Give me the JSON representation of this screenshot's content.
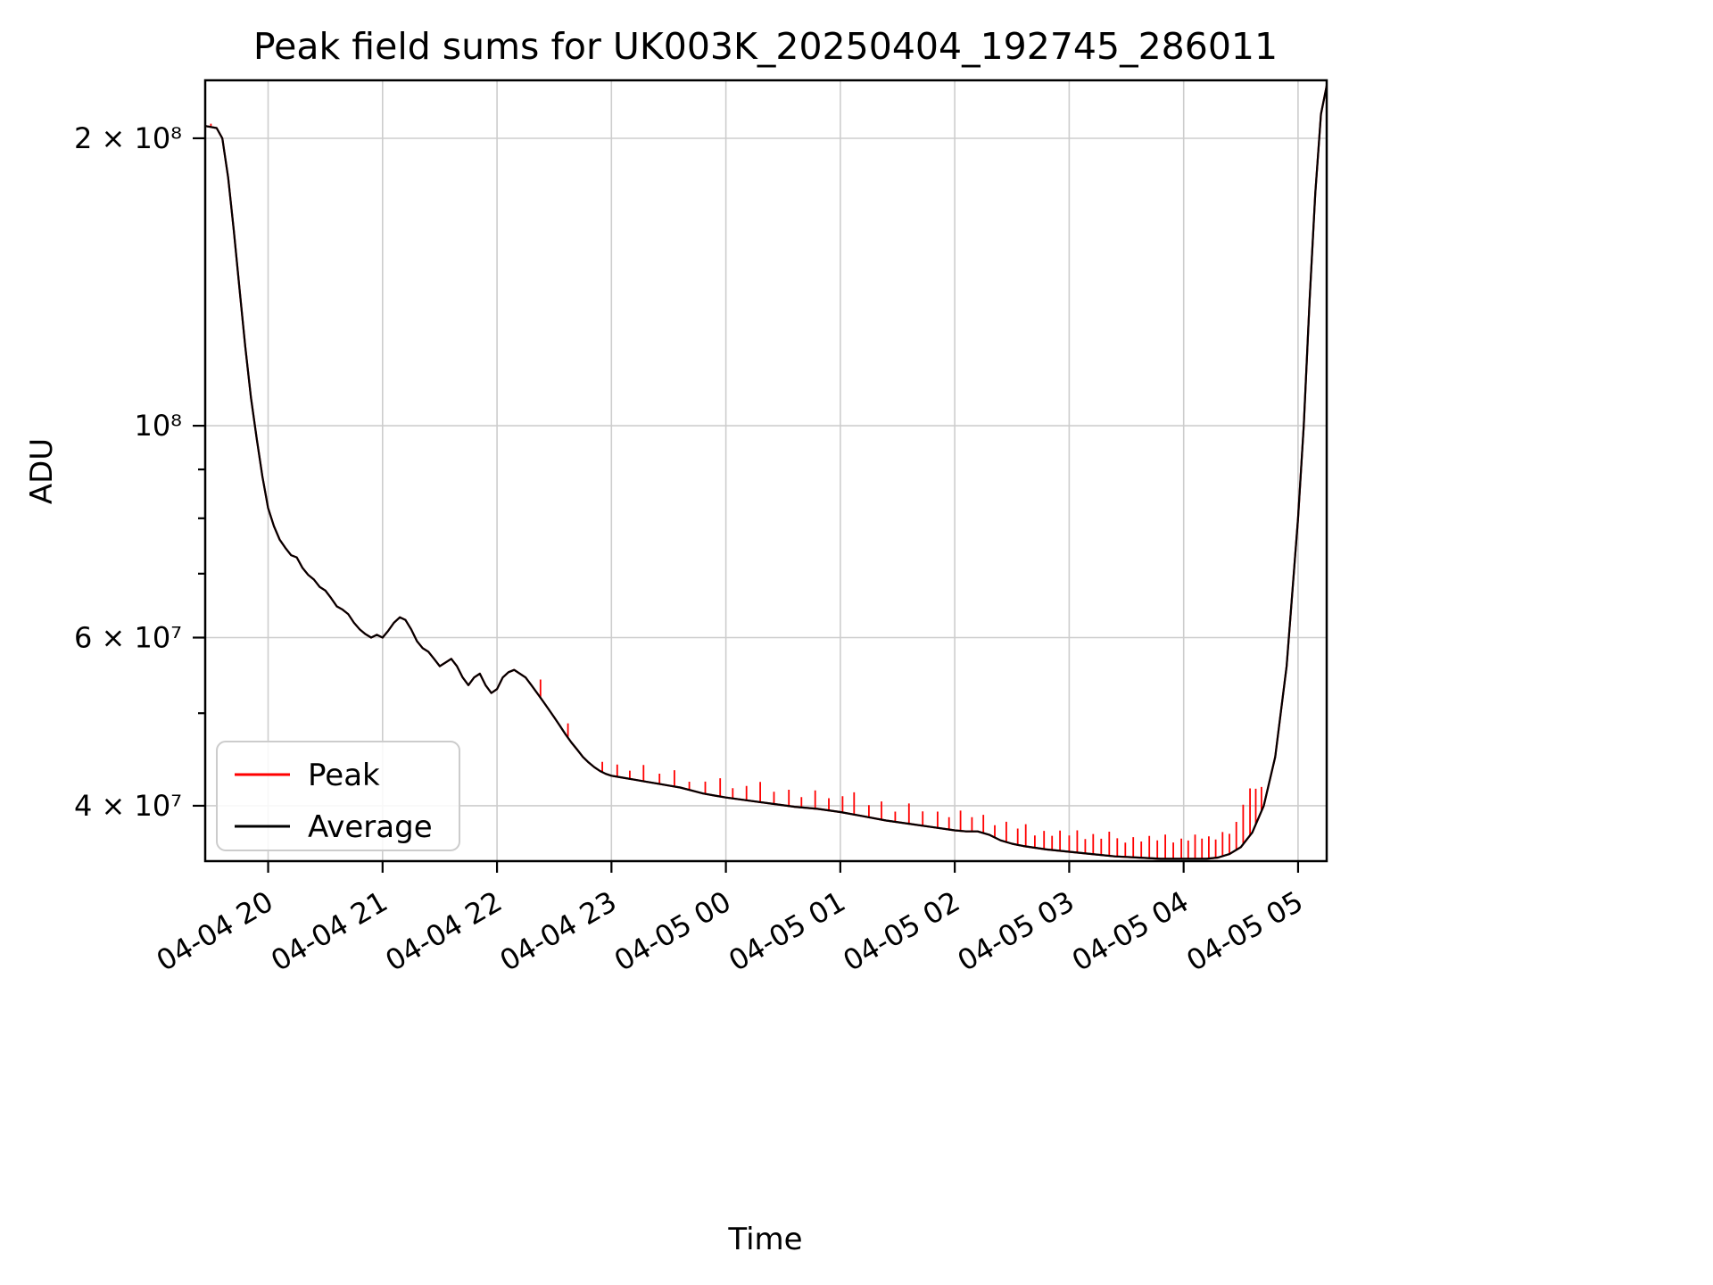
{
  "figure": {
    "background": "#ffffff"
  },
  "chart_data": {
    "type": "line",
    "title": "Peak field sums for UK003K_20250404_192745_286011",
    "xlabel": "Time",
    "ylabel": "ADU",
    "yscale": "log",
    "grid": true,
    "legend_position": "lower left",
    "x_unit": "hours since 2025-04-04 00:00",
    "xlim": [
      19.45,
      29.25
    ],
    "ylim": [
      35000000.0,
      230000000.0
    ],
    "xticks": [
      {
        "value": 20,
        "label": "04-04 20"
      },
      {
        "value": 21,
        "label": "04-04 21"
      },
      {
        "value": 22,
        "label": "04-04 22"
      },
      {
        "value": 23,
        "label": "04-04 23"
      },
      {
        "value": 24,
        "label": "04-05 00"
      },
      {
        "value": 25,
        "label": "04-05 01"
      },
      {
        "value": 26,
        "label": "04-05 02"
      },
      {
        "value": 27,
        "label": "04-05 03"
      },
      {
        "value": 28,
        "label": "04-05 04"
      },
      {
        "value": 29,
        "label": "04-05 05"
      }
    ],
    "yticks": [
      {
        "value": 200000000.0,
        "label": "2 × 10⁸"
      },
      {
        "value": 100000000.0,
        "label": "10⁸"
      },
      {
        "value": 60000000.0,
        "label": "6 × 10⁷"
      },
      {
        "value": 40000000.0,
        "label": "4 × 10⁷"
      }
    ],
    "yticks_minor": [
      50000000.0,
      70000000.0,
      80000000.0,
      90000000.0
    ],
    "x": [
      19.45,
      19.5,
      19.55,
      19.6,
      19.65,
      19.7,
      19.75,
      19.8,
      19.85,
      19.9,
      19.95,
      20.0,
      20.05,
      20.1,
      20.15,
      20.2,
      20.25,
      20.3,
      20.35,
      20.4,
      20.45,
      20.5,
      20.55,
      20.6,
      20.65,
      20.7,
      20.75,
      20.8,
      20.85,
      20.9,
      20.95,
      21.0,
      21.05,
      21.1,
      21.15,
      21.2,
      21.25,
      21.3,
      21.35,
      21.4,
      21.45,
      21.5,
      21.55,
      21.6,
      21.65,
      21.7,
      21.75,
      21.8,
      21.85,
      21.9,
      21.95,
      22.0,
      22.05,
      22.1,
      22.15,
      22.2,
      22.25,
      22.3,
      22.35,
      22.4,
      22.45,
      22.5,
      22.55,
      22.6,
      22.65,
      22.7,
      22.75,
      22.8,
      22.85,
      22.9,
      22.95,
      23.0,
      23.1,
      23.2,
      23.3,
      23.4,
      23.5,
      23.6,
      23.7,
      23.8,
      23.9,
      24.0,
      24.2,
      24.4,
      24.6,
      24.8,
      25.0,
      25.2,
      25.4,
      25.6,
      25.8,
      26.0,
      26.1,
      26.2,
      26.3,
      26.4,
      26.5,
      26.6,
      26.8,
      27.0,
      27.2,
      27.4,
      27.6,
      27.8,
      28.0,
      28.1,
      28.2,
      28.3,
      28.4,
      28.5,
      28.6,
      28.7,
      28.8,
      28.9,
      29.0,
      29.05,
      29.1,
      29.15,
      29.2,
      29.25
    ],
    "series": [
      {
        "name": "Peak",
        "color": "#ff0000",
        "baseline": "Average",
        "spikes": [
          [
            19.5,
            1.008
          ],
          [
            22.38,
            1.045
          ],
          [
            22.62,
            1.035
          ],
          [
            22.92,
            1.025
          ],
          [
            23.05,
            1.03
          ],
          [
            23.16,
            1.02
          ],
          [
            23.28,
            1.04
          ],
          [
            23.42,
            1.025
          ],
          [
            23.55,
            1.04
          ],
          [
            23.68,
            1.02
          ],
          [
            23.82,
            1.03
          ],
          [
            23.95,
            1.045
          ],
          [
            24.06,
            1.025
          ],
          [
            24.18,
            1.035
          ],
          [
            24.3,
            1.05
          ],
          [
            24.42,
            1.03
          ],
          [
            24.55,
            1.04
          ],
          [
            24.66,
            1.025
          ],
          [
            24.78,
            1.045
          ],
          [
            24.9,
            1.03
          ],
          [
            25.02,
            1.04
          ],
          [
            25.12,
            1.055
          ],
          [
            25.25,
            1.03
          ],
          [
            25.36,
            1.045
          ],
          [
            25.48,
            1.025
          ],
          [
            25.6,
            1.05
          ],
          [
            25.72,
            1.035
          ],
          [
            25.85,
            1.04
          ],
          [
            25.95,
            1.03
          ],
          [
            26.05,
            1.05
          ],
          [
            26.15,
            1.035
          ],
          [
            26.25,
            1.045
          ],
          [
            26.35,
            1.03
          ],
          [
            26.45,
            1.05
          ],
          [
            26.55,
            1.04
          ],
          [
            26.62,
            1.055
          ],
          [
            26.7,
            1.03
          ],
          [
            26.78,
            1.045
          ],
          [
            26.85,
            1.035
          ],
          [
            26.92,
            1.05
          ],
          [
            27.0,
            1.04
          ],
          [
            27.07,
            1.055
          ],
          [
            27.14,
            1.035
          ],
          [
            27.21,
            1.05
          ],
          [
            27.28,
            1.04
          ],
          [
            27.35,
            1.06
          ],
          [
            27.42,
            1.045
          ],
          [
            27.49,
            1.035
          ],
          [
            27.56,
            1.05
          ],
          [
            27.63,
            1.04
          ],
          [
            27.7,
            1.055
          ],
          [
            27.77,
            1.045
          ],
          [
            27.84,
            1.06
          ],
          [
            27.91,
            1.04
          ],
          [
            27.98,
            1.05
          ],
          [
            28.04,
            1.045
          ],
          [
            28.1,
            1.06
          ],
          [
            28.16,
            1.05
          ],
          [
            28.22,
            1.055
          ],
          [
            28.28,
            1.045
          ],
          [
            28.34,
            1.06
          ],
          [
            28.4,
            1.05
          ],
          [
            28.46,
            1.07
          ],
          [
            28.52,
            1.1
          ],
          [
            28.58,
            1.12
          ],
          [
            28.63,
            1.09
          ],
          [
            28.68,
            1.06
          ]
        ]
      },
      {
        "name": "Average",
        "color": "#000000",
        "values": [
          206000000.0,
          205500000.0,
          205000000.0,
          200000000.0,
          182000000.0,
          160000000.0,
          139000000.0,
          121000000.0,
          107000000.0,
          97000000.0,
          88500000.0,
          82000000.0,
          78500000.0,
          76000000.0,
          74500000.0,
          73200000.0,
          72800000.0,
          71000000.0,
          69800000.0,
          69000000.0,
          67800000.0,
          67200000.0,
          66000000.0,
          64700000.0,
          64200000.0,
          63500000.0,
          62200000.0,
          61200000.0,
          60500000.0,
          60000000.0,
          60400000.0,
          60000000.0,
          61000000.0,
          62200000.0,
          63000000.0,
          62600000.0,
          61200000.0,
          59500000.0,
          58500000.0,
          58000000.0,
          57000000.0,
          56000000.0,
          56500000.0,
          57000000.0,
          56000000.0,
          54500000.0,
          53500000.0,
          54500000.0,
          55000000.0,
          53500000.0,
          52500000.0,
          53000000.0,
          54500000.0,
          55200000.0,
          55500000.0,
          55000000.0,
          54500000.0,
          53500000.0,
          52500000.0,
          51500000.0,
          50500000.0,
          49500000.0,
          48500000.0,
          47500000.0,
          46600000.0,
          45800000.0,
          45000000.0,
          44400000.0,
          43900000.0,
          43500000.0,
          43200000.0,
          43000000.0,
          42800000.0,
          42600000.0,
          42400000.0,
          42200000.0,
          42000000.0,
          41800000.0,
          41500000.0,
          41200000.0,
          41000000.0,
          40800000.0,
          40500000.0,
          40200000.0,
          39900000.0,
          39700000.0,
          39400000.0,
          39000000.0,
          38600000.0,
          38300000.0,
          38000000.0,
          37700000.0,
          37600000.0,
          37600000.0,
          37300000.0,
          36800000.0,
          36500000.0,
          36300000.0,
          36000000.0,
          35800000.0,
          35600000.0,
          35400000.0,
          35300000.0,
          35200000.0,
          35200000.0,
          35200000.0,
          35200000.0,
          35300000.0,
          35600000.0,
          36200000.0,
          37500000.0,
          40000000.0,
          45000000.0,
          56000000.0,
          80000000.0,
          100000000.0,
          135000000.0,
          175000000.0,
          212000000.0,
          227000000.0
        ]
      }
    ]
  }
}
